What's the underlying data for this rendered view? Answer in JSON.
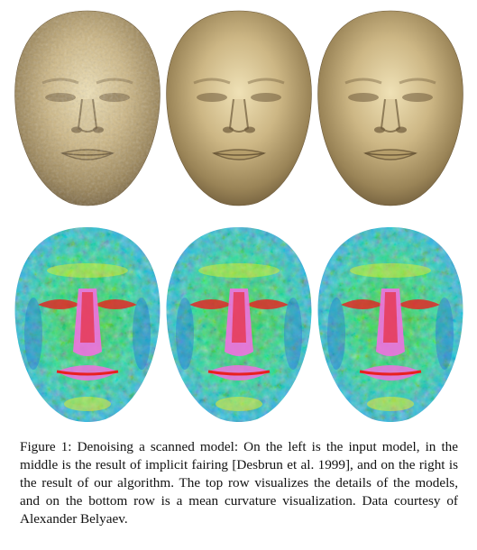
{
  "figure": {
    "number": 1,
    "panels": [
      {
        "row": "top",
        "position": "left",
        "content": "input scanned model"
      },
      {
        "row": "top",
        "position": "middle",
        "content": "implicit fairing result"
      },
      {
        "row": "top",
        "position": "right",
        "content": "our algorithm result"
      },
      {
        "row": "bottom",
        "position": "left",
        "content": "input mean curvature"
      },
      {
        "row": "bottom",
        "position": "middle",
        "content": "implicit fairing mean curvature"
      },
      {
        "row": "bottom",
        "position": "right",
        "content": "our algorithm mean curvature"
      }
    ],
    "colors": {
      "gold_light": "#d9c79a",
      "gold_mid": "#b49c68",
      "gold_dark": "#6d5a3a",
      "curv_blue": "#2060e0",
      "curv_cyan": "#30d8e0",
      "curv_green": "#40d040",
      "curv_yellow": "#f0f020",
      "curv_red": "#e82020",
      "curv_magenta": "#f070e0"
    }
  },
  "caption": {
    "text": "Figure 1: Denoising a scanned model: On the left is the input model, in the middle is the result of implicit fairing [Desbrun et al. 1999], and on the right is the result of our algorithm. The top row visualizes the details of the models, and on the bottom row is a mean curvature visualization. Data courtesy of Alexander Belyaev."
  }
}
